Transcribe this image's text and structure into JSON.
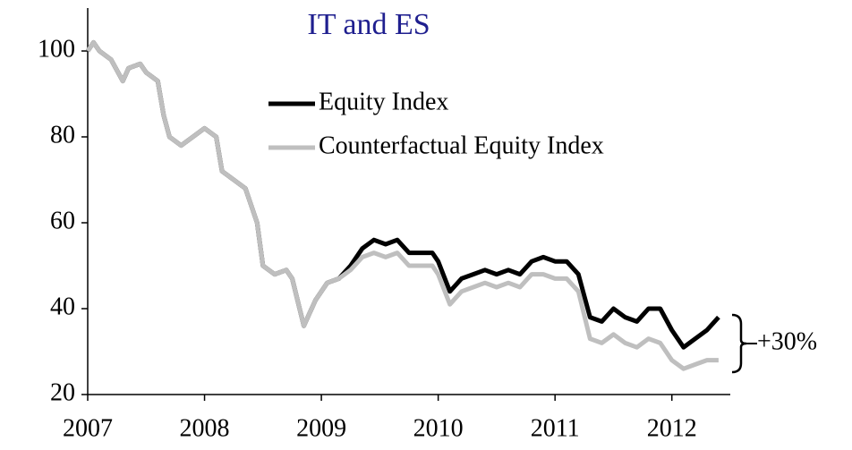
{
  "chart_data": {
    "type": "line",
    "title": "IT and ES",
    "annotation": "+30%",
    "x": [
      2007.0,
      2007.05,
      2007.1,
      2007.2,
      2007.3,
      2007.35,
      2007.45,
      2007.5,
      2007.6,
      2007.65,
      2007.7,
      2007.8,
      2007.9,
      2008.0,
      2008.1,
      2008.15,
      2008.25,
      2008.35,
      2008.45,
      2008.5,
      2008.6,
      2008.7,
      2008.75,
      2008.85,
      2008.95,
      2009.05,
      2009.15,
      2009.25,
      2009.35,
      2009.45,
      2009.55,
      2009.65,
      2009.75,
      2009.85,
      2009.95,
      2010.0,
      2010.1,
      2010.2,
      2010.3,
      2010.4,
      2010.5,
      2010.6,
      2010.7,
      2010.8,
      2010.9,
      2011.0,
      2011.1,
      2011.2,
      2011.3,
      2011.4,
      2011.5,
      2011.6,
      2011.7,
      2011.8,
      2011.9,
      2012.0,
      2012.1,
      2012.2,
      2012.3,
      2012.4
    ],
    "series": [
      {
        "name": "Equity Index",
        "color": "#000000",
        "values": [
          100,
          102,
          100,
          98,
          93,
          96,
          97,
          95,
          93,
          85,
          80,
          78,
          80,
          82,
          80,
          72,
          70,
          68,
          60,
          50,
          48,
          49,
          47,
          36,
          42,
          46,
          47,
          50,
          54,
          56,
          55,
          56,
          53,
          53,
          53,
          51,
          44,
          47,
          48,
          49,
          48,
          49,
          48,
          51,
          52,
          51,
          51,
          48,
          38,
          37,
          40,
          38,
          37,
          40,
          40,
          35,
          31,
          33,
          35,
          38
        ]
      },
      {
        "name": "Counterfactual Equity Index",
        "color": "#bfbfbf",
        "values": [
          100,
          102,
          100,
          98,
          93,
          96,
          97,
          95,
          93,
          85,
          80,
          78,
          80,
          82,
          80,
          72,
          70,
          68,
          60,
          50,
          48,
          49,
          47,
          36,
          42,
          46,
          47,
          49,
          52,
          53,
          52,
          53,
          50,
          50,
          50,
          48,
          41,
          44,
          45,
          46,
          45,
          46,
          45,
          48,
          48,
          47,
          47,
          44,
          33,
          32,
          34,
          32,
          31,
          33,
          32,
          28,
          26,
          27,
          28,
          28
        ]
      }
    ],
    "xlim": [
      2007,
      2012.5
    ],
    "xticks": [
      2007,
      2008,
      2009,
      2010,
      2011,
      2012
    ],
    "ylim": [
      20,
      110
    ],
    "yticks": [
      20,
      40,
      60,
      80,
      100
    ],
    "grid": false,
    "legend": "top-right"
  }
}
